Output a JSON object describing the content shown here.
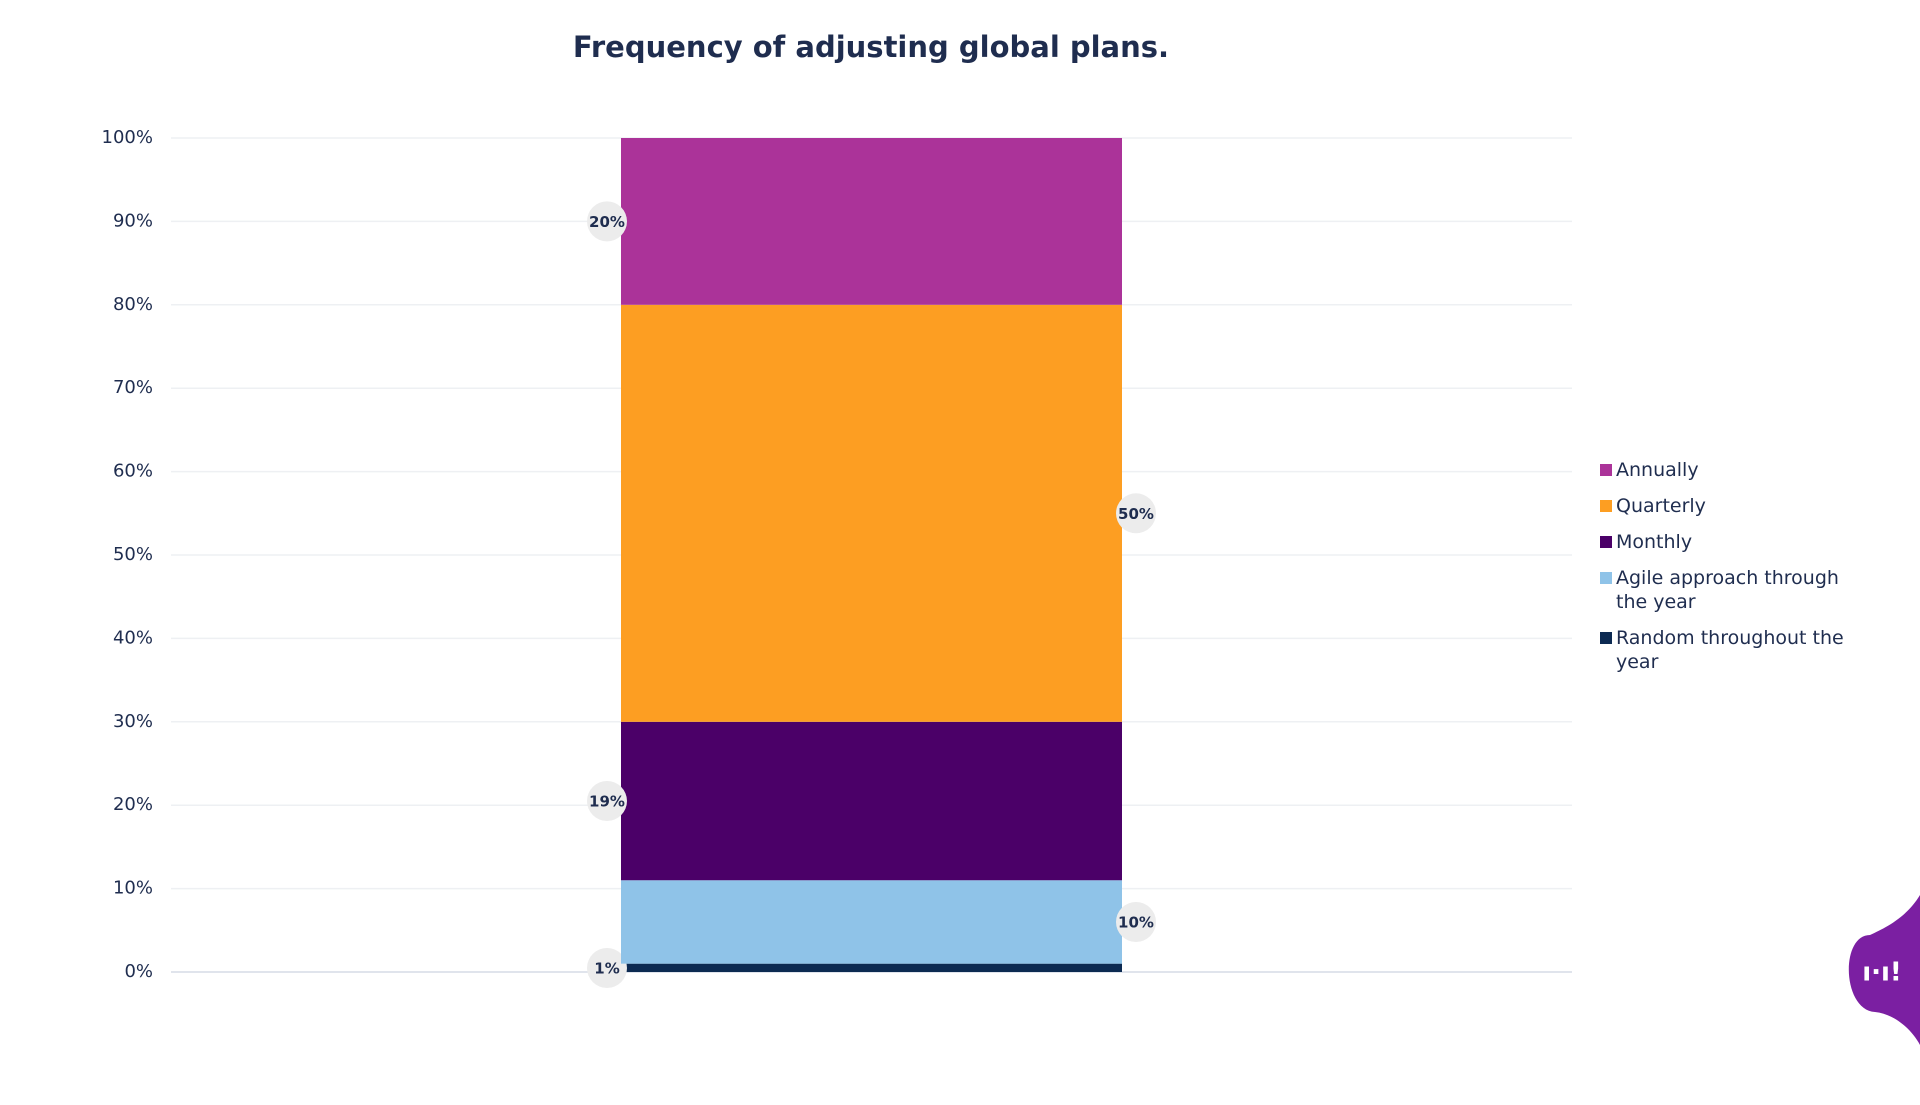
{
  "chart_data": {
    "type": "stacked_bar",
    "title": "Frequency of adjusting global plans.",
    "categories": [
      null
    ],
    "series": [
      {
        "name": "Annually",
        "color": "#ab3399",
        "values": [
          20
        ],
        "value_labels": [
          "20%"
        ]
      },
      {
        "name": "Quarterly",
        "color": "#fd9e22",
        "values": [
          50
        ],
        "value_labels": [
          "50%"
        ]
      },
      {
        "name": "Monthly",
        "color": "#4b0068",
        "values": [
          19
        ],
        "value_labels": [
          "19%"
        ]
      },
      {
        "name": "Agile approach through the year",
        "color": "#8fc3e8",
        "values": [
          10
        ],
        "value_labels": [
          "10%"
        ]
      },
      {
        "name": "Random throughout the year",
        "color": "#0c2a52",
        "values": [
          1
        ],
        "value_labels": [
          "1%"
        ]
      }
    ],
    "ylim": [
      0,
      100
    ],
    "yticks": [
      {
        "value": 0,
        "label": "0%"
      },
      {
        "value": 10,
        "label": "10%"
      },
      {
        "value": 20,
        "label": "20%"
      },
      {
        "value": 30,
        "label": "30%"
      },
      {
        "value": 40,
        "label": "40%"
      },
      {
        "value": 50,
        "label": "50%"
      },
      {
        "value": 60,
        "label": "60%"
      },
      {
        "value": 70,
        "label": "70%"
      },
      {
        "value": 80,
        "label": "80%"
      },
      {
        "value": 90,
        "label": "90%"
      },
      {
        "value": 100,
        "label": "100%"
      }
    ],
    "grid": true,
    "legend": "right"
  }
}
